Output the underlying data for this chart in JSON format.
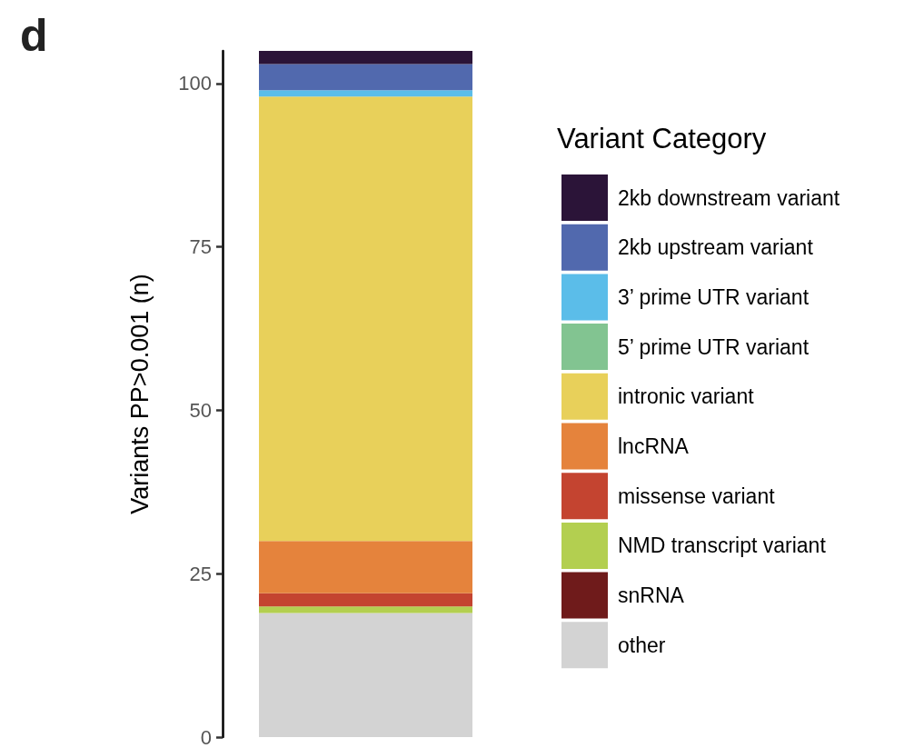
{
  "chart_data": {
    "type": "bar",
    "stacked": true,
    "ylabel": "Variants PP>0.001 (n)",
    "legend_title": "Variant Category",
    "legend": "right",
    "grid": false,
    "tick_labels": "y",
    "annotations": [
      "d"
    ],
    "categories": [
      null
    ],
    "ylim": [
      0,
      105
    ],
    "yticks": [
      0,
      25,
      50,
      75,
      100
    ],
    "series": [
      {
        "name": "other",
        "color": "#d3d3d3",
        "values": [
          19
        ]
      },
      {
        "name": "snRNA",
        "color": "#6f1b1b",
        "values": [
          0
        ]
      },
      {
        "name": "NMD transcript variant",
        "color": "#b3cf50",
        "values": [
          1
        ]
      },
      {
        "name": "missense variant",
        "color": "#c44430",
        "values": [
          2
        ]
      },
      {
        "name": "lncRNA",
        "color": "#e5833c",
        "values": [
          8
        ]
      },
      {
        "name": "intronic variant",
        "color": "#e8d05a",
        "values": [
          68
        ]
      },
      {
        "name": "5’ prime UTR variant",
        "color": "#82c491",
        "values": [
          0
        ]
      },
      {
        "name": "3’ prime UTR variant",
        "color": "#5bbde9",
        "values": [
          1
        ]
      },
      {
        "name": "2kb upstream variant",
        "color": "#5169ae",
        "values": [
          4
        ]
      },
      {
        "name": "2kb downstream variant",
        "color": "#2b1438",
        "values": [
          2
        ]
      }
    ]
  }
}
